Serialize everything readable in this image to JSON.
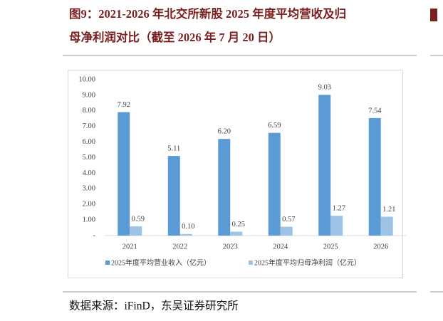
{
  "chart_data": {
    "type": "bar",
    "title": [
      "图9：2021-2026 年北交所新股 2025 年度平均营收及归",
      "母净利润对比（截至 2026 年 7 月 20 日）"
    ],
    "categories": [
      "2021",
      "2022",
      "2023",
      "2024",
      "2025",
      "2026"
    ],
    "series": [
      {
        "name": "2025年度平均营业收入（亿元）",
        "color": "#5b9bd5",
        "values": [
          7.92,
          5.11,
          6.2,
          6.59,
          9.03,
          7.54
        ],
        "value_labels": [
          "7.92",
          "5.11",
          "6.20",
          "6.59",
          "9.03",
          "7.54"
        ]
      },
      {
        "name": "2025年度平均归母净利润（亿元）",
        "color": "#9dc3e6",
        "values": [
          0.59,
          0.1,
          0.25,
          0.57,
          1.27,
          1.21
        ],
        "value_labels": [
          "0.59",
          "0.10",
          "0.25",
          "0.57",
          "1.27",
          "1.21"
        ]
      }
    ],
    "ylim": [
      0,
      10
    ],
    "yticks": [
      {
        "value": 0,
        "label": "-"
      },
      {
        "value": 1,
        "label": "1.00"
      },
      {
        "value": 2,
        "label": "2.00"
      },
      {
        "value": 3,
        "label": "3.00"
      },
      {
        "value": 4,
        "label": "4.00"
      },
      {
        "value": 5,
        "label": "5.00"
      },
      {
        "value": 6,
        "label": "6.00"
      },
      {
        "value": 7,
        "label": "7.00"
      },
      {
        "value": 8,
        "label": "8.00"
      },
      {
        "value": 9,
        "label": "9.00"
      },
      {
        "value": 10,
        "label": "10.00"
      }
    ],
    "grid": false,
    "legend": "bottom",
    "source": "数据来源：iFinD，东吴证券研究所"
  }
}
